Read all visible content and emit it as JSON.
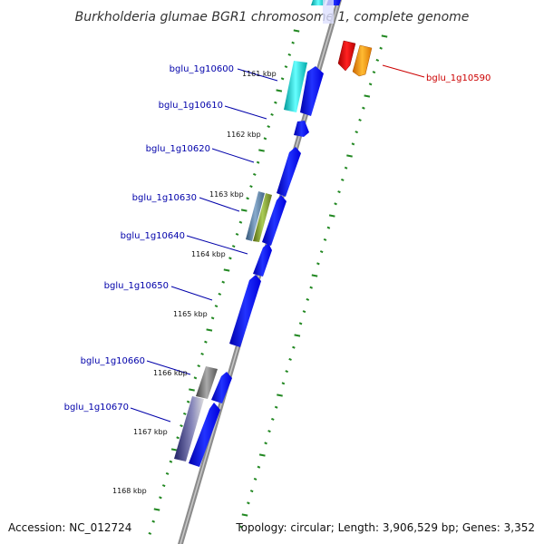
{
  "title": "Burkholderia glumae BGR1 chromosome 1, complete genome",
  "footer": {
    "accession": "Accession: NC_012724",
    "topology": "Topology: circular; Length: 3,906,529 bp; Genes: 3,352"
  },
  "tick_labels": [
    "1161 kbp",
    "1162 kbp",
    "1163 kbp",
    "1164 kbp",
    "1165 kbp",
    "1166 kbp",
    "1167 kbp",
    "1168 kbp"
  ],
  "genes": [
    {
      "id": "bglu_1g10590",
      "color": "#cc0000"
    },
    {
      "id": "bglu_1g10600",
      "color": "#0000aa"
    },
    {
      "id": "bglu_1g10610",
      "color": "#0000aa"
    },
    {
      "id": "bglu_1g10620",
      "color": "#0000aa"
    },
    {
      "id": "bglu_1g10630",
      "color": "#0000aa"
    },
    {
      "id": "bglu_1g10640",
      "color": "#0000aa"
    },
    {
      "id": "bglu_1g10650",
      "color": "#0000aa"
    },
    {
      "id": "bglu_1g10660",
      "color": "#0000aa"
    },
    {
      "id": "bglu_1g10670",
      "color": "#0000aa"
    }
  ],
  "colors": {
    "backbone": "#888888",
    "forward_gene": "#0000ff",
    "cds_cyan": "#00cccc",
    "cds_red": "#dd0000",
    "cds_orange": "#ff9900",
    "cds_steelblue": "#4477aa",
    "cds_olive": "#779922",
    "cds_gray": "#666666",
    "cds_slate": "#333399",
    "tick_green": "#228822"
  }
}
